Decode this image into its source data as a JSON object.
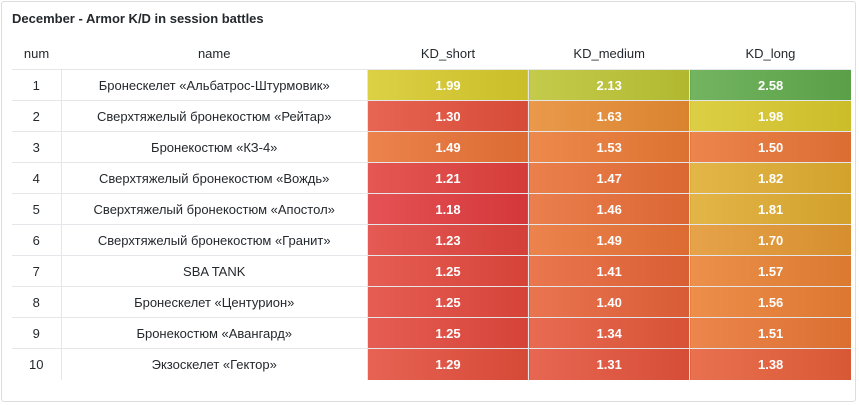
{
  "panel": {
    "title": "December - Armor K/D in session battles"
  },
  "table": {
    "columns": [
      "num",
      "name",
      "KD_short",
      "KD_medium",
      "KD_long"
    ],
    "rows": [
      {
        "num": "1",
        "name": "Бронескелет «Альбатрос-Штурмовик»",
        "kd_short": "1.99",
        "kd_medium": "2.13",
        "kd_long": "2.58"
      },
      {
        "num": "2",
        "name": "Сверхтяжелый бронекостюм «Рейтар»",
        "kd_short": "1.30",
        "kd_medium": "1.63",
        "kd_long": "1.98"
      },
      {
        "num": "3",
        "name": "Бронекостюм «КЗ-4»",
        "kd_short": "1.49",
        "kd_medium": "1.53",
        "kd_long": "1.50"
      },
      {
        "num": "4",
        "name": "Сверхтяжелый бронекостюм «Вождь»",
        "kd_short": "1.21",
        "kd_medium": "1.47",
        "kd_long": "1.82"
      },
      {
        "num": "5",
        "name": "Сверхтяжелый бронекостюм «Апостол»",
        "kd_short": "1.18",
        "kd_medium": "1.46",
        "kd_long": "1.81"
      },
      {
        "num": "6",
        "name": "Сверхтяжелый бронекостюм «Гранит»",
        "kd_short": "1.23",
        "kd_medium": "1.49",
        "kd_long": "1.70"
      },
      {
        "num": "7",
        "name": "SBA TANK",
        "kd_short": "1.25",
        "kd_medium": "1.41",
        "kd_long": "1.57"
      },
      {
        "num": "8",
        "name": "Бронескелет «Центурион»",
        "kd_short": "1.25",
        "kd_medium": "1.40",
        "kd_long": "1.56"
      },
      {
        "num": "9",
        "name": "Бронекостюм «Авангард»",
        "kd_short": "1.25",
        "kd_medium": "1.34",
        "kd_long": "1.51"
      },
      {
        "num": "10",
        "name": "Экзоскелет «Гектор»",
        "kd_short": "1.29",
        "kd_medium": "1.31",
        "kd_long": "1.38"
      }
    ]
  },
  "colors": {
    "red": "#e0353f",
    "orange": "#ea7d33",
    "yellow": "#d7cc2c",
    "green": "#5ca94d"
  }
}
